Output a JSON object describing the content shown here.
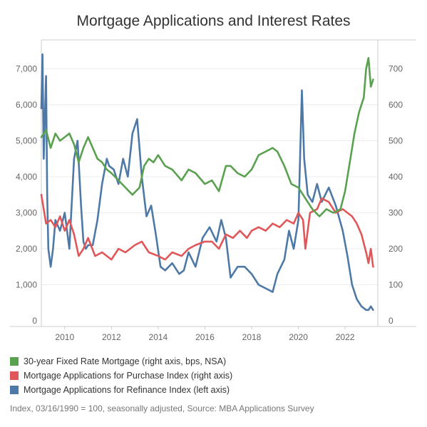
{
  "chart_data": {
    "type": "line",
    "title": "Mortgage Applications and Interest Rates",
    "x_ticks": [
      "2010",
      "2012",
      "2014",
      "2016",
      "2018",
      "2020",
      "2022"
    ],
    "left_axis": {
      "ticks": [
        "0",
        "1,000",
        "2,000",
        "3,000",
        "4,000",
        "5,000",
        "6,000",
        "7,000"
      ],
      "ylim": [
        0,
        7800
      ]
    },
    "right_axis": {
      "ticks": [
        "0",
        "100",
        "200",
        "300",
        "400",
        "500",
        "600",
        "700"
      ],
      "ylim": [
        0,
        780
      ]
    },
    "xlim": [
      2009.0,
      2023.4
    ],
    "grid": "horizontal",
    "legend_position": "bottom",
    "series": [
      {
        "name": "30-year Fixed Rate Mortgage (right axis, bps, NSA)",
        "axis": "right",
        "color": "#59A14F",
        "x": [
          2009.0,
          2009.2,
          2009.4,
          2009.6,
          2009.8,
          2010.0,
          2010.2,
          2010.4,
          2010.6,
          2010.8,
          2011.0,
          2011.2,
          2011.4,
          2011.6,
          2011.8,
          2012.0,
          2012.3,
          2012.6,
          2012.9,
          2013.2,
          2013.4,
          2013.6,
          2013.8,
          2014.0,
          2014.3,
          2014.6,
          2015.0,
          2015.3,
          2015.6,
          2016.0,
          2016.3,
          2016.6,
          2016.9,
          2017.1,
          2017.4,
          2017.7,
          2018.0,
          2018.3,
          2018.6,
          2018.9,
          2019.1,
          2019.4,
          2019.7,
          2020.0,
          2020.3,
          2020.6,
          2020.9,
          2021.2,
          2021.5,
          2021.8,
          2022.0,
          2022.2,
          2022.4,
          2022.6,
          2022.8,
          2022.9,
          2023.0,
          2023.1,
          2023.2
        ],
        "values": [
          510,
          530,
          480,
          520,
          500,
          510,
          520,
          490,
          440,
          480,
          510,
          480,
          450,
          440,
          420,
          410,
          390,
          370,
          350,
          370,
          430,
          450,
          440,
          460,
          430,
          420,
          390,
          420,
          410,
          380,
          390,
          360,
          430,
          430,
          410,
          400,
          420,
          460,
          470,
          480,
          470,
          430,
          380,
          370,
          340,
          310,
          290,
          310,
          300,
          310,
          360,
          440,
          520,
          580,
          620,
          700,
          730,
          650,
          670
        ]
      },
      {
        "name": "Mortgage Applications for Purchase Index (right axis)",
        "axis": "right",
        "color": "#E15759",
        "x": [
          2009.0,
          2009.2,
          2009.4,
          2009.6,
          2009.8,
          2010.0,
          2010.2,
          2010.4,
          2010.6,
          2010.8,
          2011.0,
          2011.3,
          2011.6,
          2012.0,
          2012.3,
          2012.6,
          2013.0,
          2013.3,
          2013.6,
          2014.0,
          2014.3,
          2014.6,
          2015.0,
          2015.3,
          2015.6,
          2016.0,
          2016.3,
          2016.6,
          2016.9,
          2017.2,
          2017.5,
          2017.8,
          2018.0,
          2018.3,
          2018.6,
          2018.9,
          2019.2,
          2019.5,
          2019.8,
          2020.0,
          2020.2,
          2020.3,
          2020.5,
          2020.8,
          2021.0,
          2021.3,
          2021.6,
          2021.9,
          2022.1,
          2022.3,
          2022.5,
          2022.7,
          2022.9,
          2023.0,
          2023.1,
          2023.2
        ],
        "values": [
          350,
          270,
          280,
          260,
          290,
          250,
          280,
          240,
          180,
          200,
          230,
          180,
          190,
          170,
          200,
          190,
          210,
          220,
          190,
          180,
          170,
          190,
          180,
          200,
          210,
          220,
          220,
          200,
          240,
          230,
          250,
          230,
          250,
          260,
          250,
          270,
          260,
          280,
          270,
          300,
          280,
          200,
          300,
          310,
          340,
          330,
          300,
          310,
          300,
          290,
          270,
          240,
          190,
          160,
          200,
          150
        ]
      },
      {
        "name": "Mortgage Applications for Refinance Index (left axis)",
        "axis": "left",
        "color": "#4E79A7",
        "x": [
          2009.0,
          2009.05,
          2009.1,
          2009.2,
          2009.25,
          2009.3,
          2009.4,
          2009.5,
          2009.6,
          2009.8,
          2010.0,
          2010.2,
          2010.4,
          2010.55,
          2010.7,
          2010.8,
          2010.9,
          2011.0,
          2011.2,
          2011.4,
          2011.6,
          2011.8,
          2011.9,
          2012.1,
          2012.3,
          2012.5,
          2012.7,
          2012.9,
          2013.1,
          2013.3,
          2013.5,
          2013.7,
          2013.9,
          2014.1,
          2014.3,
          2014.6,
          2014.9,
          2015.1,
          2015.3,
          2015.6,
          2015.9,
          2016.2,
          2016.5,
          2016.7,
          2016.9,
          2017.1,
          2017.4,
          2017.7,
          2018.0,
          2018.3,
          2018.6,
          2018.9,
          2019.1,
          2019.4,
          2019.6,
          2019.8,
          2020.0,
          2020.15,
          2020.25,
          2020.4,
          2020.6,
          2020.8,
          2021.0,
          2021.3,
          2021.6,
          2021.9,
          2022.1,
          2022.3,
          2022.5,
          2022.7,
          2022.9,
          2023.0,
          2023.1,
          2023.2
        ],
        "values": [
          5900,
          7400,
          4500,
          6800,
          3500,
          2000,
          1500,
          2000,
          2800,
          2500,
          3000,
          2000,
          4500,
          5000,
          3200,
          2200,
          2000,
          2100,
          2100,
          2800,
          3800,
          4500,
          4300,
          4200,
          3800,
          4500,
          4000,
          5200,
          5600,
          4000,
          2900,
          3200,
          2400,
          1500,
          1400,
          1600,
          1300,
          1400,
          1900,
          1500,
          2300,
          2600,
          2200,
          2800,
          2300,
          1200,
          1500,
          1500,
          1300,
          1000,
          900,
          800,
          1300,
          1700,
          2500,
          2000,
          2800,
          6400,
          4500,
          3500,
          3300,
          3800,
          3300,
          3700,
          3200,
          2500,
          1800,
          1000,
          600,
          400,
          300,
          300,
          400,
          300
        ]
      }
    ],
    "footnote": "Index, 03/16/1990 = 100, seasonally adjusted, Source: MBA Applications Survey"
  }
}
